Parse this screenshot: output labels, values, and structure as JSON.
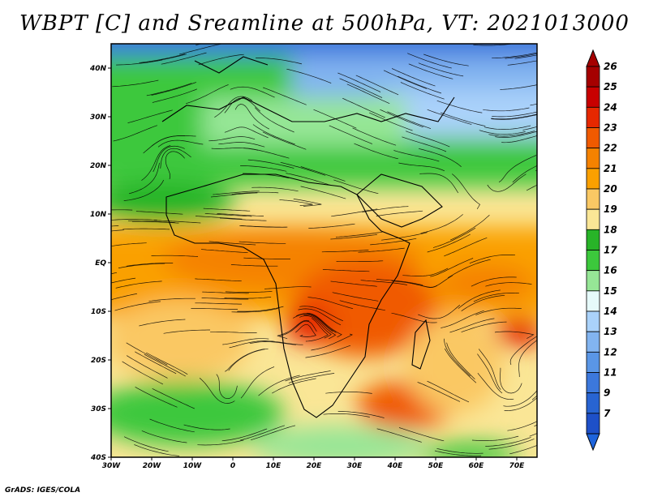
{
  "title": "WBPT [C] and Sreamline at 500hPa, VT: 2021013000",
  "credit": "GrADS: IGES/COLA",
  "map": {
    "lon_range": [
      -30,
      75
    ],
    "lat_range": [
      -40,
      45
    ],
    "lon_ticks": [
      {
        "value": -30,
        "label": "30W"
      },
      {
        "value": -20,
        "label": "20W"
      },
      {
        "value": -10,
        "label": "10W"
      },
      {
        "value": 0,
        "label": "0"
      },
      {
        "value": 10,
        "label": "10E"
      },
      {
        "value": 20,
        "label": "20E"
      },
      {
        "value": 30,
        "label": "30E"
      },
      {
        "value": 40,
        "label": "40E"
      },
      {
        "value": 50,
        "label": "50E"
      },
      {
        "value": 60,
        "label": "60E"
      },
      {
        "value": 70,
        "label": "70E"
      }
    ],
    "lat_ticks": [
      {
        "value": 40,
        "label": "40N"
      },
      {
        "value": 30,
        "label": "30N"
      },
      {
        "value": 20,
        "label": "20N"
      },
      {
        "value": 10,
        "label": "10N"
      },
      {
        "value": 0,
        "label": "EQ"
      },
      {
        "value": -10,
        "label": "10S"
      },
      {
        "value": -20,
        "label": "20S"
      },
      {
        "value": -30,
        "label": "30S"
      },
      {
        "value": -40,
        "label": "40S"
      }
    ]
  },
  "colorbar": {
    "levels": [
      {
        "label": "26",
        "color": "#a50000"
      },
      {
        "label": "25",
        "color": "#c80000"
      },
      {
        "label": "24",
        "color": "#e62800"
      },
      {
        "label": "23",
        "color": "#f05a00"
      },
      {
        "label": "22",
        "color": "#f58200"
      },
      {
        "label": "21",
        "color": "#faa000"
      },
      {
        "label": "20",
        "color": "#fac864"
      },
      {
        "label": "19",
        "color": "#fae696"
      },
      {
        "label": "18",
        "color": "#28b428"
      },
      {
        "label": "17",
        "color": "#3cc83c"
      },
      {
        "label": "16",
        "color": "#96e696"
      },
      {
        "label": "15",
        "color": "#e6fafa"
      },
      {
        "label": "14",
        "color": "#aad2fa"
      },
      {
        "label": "13",
        "color": "#82b4f0"
      },
      {
        "label": "12",
        "color": "#5a96e6"
      },
      {
        "label": "11",
        "color": "#3c78dc"
      },
      {
        "label": "9",
        "color": "#2864d2"
      },
      {
        "label": "7",
        "color": "#1e50c8"
      }
    ],
    "below_color": "#1e64dc",
    "above_color": "#a50000"
  }
}
